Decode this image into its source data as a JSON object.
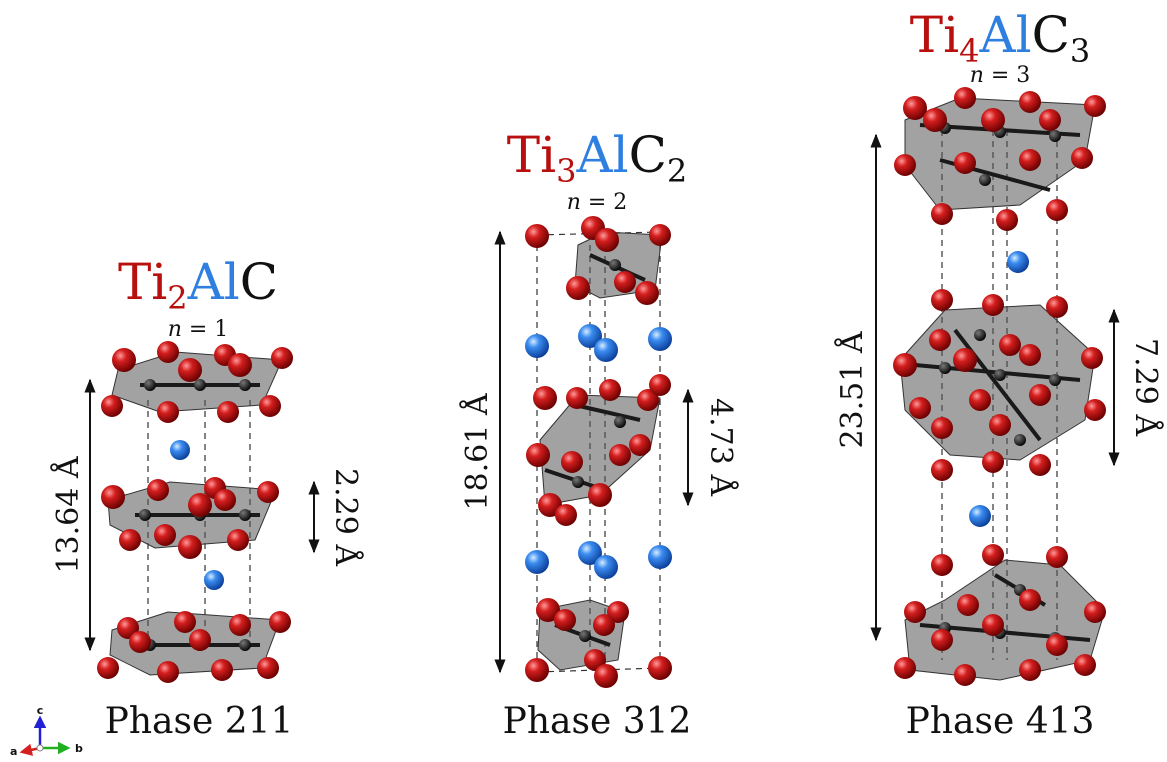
{
  "colors": {
    "titanium": "#b80f0f",
    "aluminum": "#2f7fe0",
    "carbon": "#222222",
    "text": "#111111",
    "octahedron": "#5a5a5a",
    "axis_a": "#d42020",
    "axis_b": "#22b022",
    "axis_c": "#2020d4"
  },
  "axes_triad": {
    "a": "a",
    "b": "b",
    "c": "c"
  },
  "structures": [
    {
      "formula": {
        "ti": "Ti",
        "ti_sub": "2",
        "al": "Al",
        "c": "C",
        "c_sub": ""
      },
      "n_label": {
        "var": "n",
        "eq": " = 1"
      },
      "phase": "Phase 211",
      "lattice_c": "13.64 Å",
      "layer_spacing": "2.29 Å"
    },
    {
      "formula": {
        "ti": "Ti",
        "ti_sub": "3",
        "al": "Al",
        "c": "C",
        "c_sub": "2"
      },
      "n_label": {
        "var": "n",
        "eq": " = 2"
      },
      "phase": "Phase 312",
      "lattice_c": "18.61 Å",
      "layer_spacing": "4.73 Å"
    },
    {
      "formula": {
        "ti": "Ti",
        "ti_sub": "4",
        "al": "Al",
        "c": "C",
        "c_sub": "3"
      },
      "n_label": {
        "var": "n",
        "eq": " = 3"
      },
      "phase": "Phase 413",
      "lattice_c": "23.51 Å",
      "layer_spacing": "7.29 Å"
    }
  ]
}
